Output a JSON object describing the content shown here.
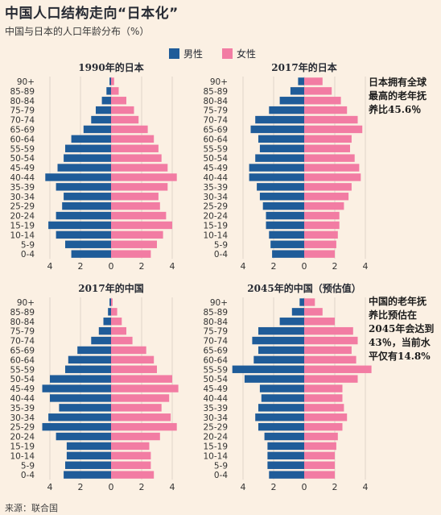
{
  "header": {
    "title": "中国人口结构走向“日本化”",
    "subtitle": "中国与日本的人口年龄分布（%）",
    "source": "来源：联合国"
  },
  "legend": [
    {
      "label": "男性",
      "color": "#1f5c99"
    },
    {
      "label": "女性",
      "color": "#f27ca3"
    }
  ],
  "annotations": {
    "japan": [
      "日本拥有全球",
      "最高的老年抚",
      "养比45.6％"
    ],
    "china": [
      "中国的老年抚",
      "养比预估在",
      "2045年会达到",
      "43％，当前水",
      "平仅有14.8%"
    ]
  },
  "chart_data": [
    {
      "type": "bar",
      "title": "1990年的日本",
      "categories": [
        "90+",
        "85-89",
        "80-84",
        "75-79",
        "70-74",
        "65-69",
        "60-64",
        "55-59",
        "50-54",
        "45-49",
        "40-44",
        "35-39",
        "30-34",
        "25-29",
        "20-24",
        "15-19",
        "10-14",
        "5-9",
        "0-4"
      ],
      "xticks": [
        4,
        2,
        0,
        2,
        4
      ],
      "xlim": [
        -4.5,
        4.5
      ],
      "series": [
        {
          "name": "男性",
          "values": [
            0.1,
            0.3,
            0.6,
            1.0,
            1.3,
            1.8,
            2.6,
            3.0,
            3.1,
            3.5,
            4.3,
            3.6,
            3.1,
            3.2,
            3.6,
            4.1,
            3.6,
            3.0,
            2.6
          ]
        },
        {
          "name": "女性",
          "values": [
            0.2,
            0.5,
            1.0,
            1.5,
            1.8,
            2.4,
            2.8,
            3.1,
            3.3,
            3.7,
            4.3,
            3.7,
            3.1,
            3.2,
            3.6,
            4.0,
            3.4,
            3.0,
            2.6
          ]
        }
      ]
    },
    {
      "type": "bar",
      "title": "2017年的日本",
      "categories": [
        "90+",
        "85-89",
        "80-84",
        "75-79",
        "70-74",
        "65-69",
        "60-64",
        "55-59",
        "50-54",
        "45-49",
        "40-44",
        "35-39",
        "30-34",
        "25-29",
        "20-24",
        "15-19",
        "10-14",
        "5-9",
        "0-4"
      ],
      "xticks": [
        4,
        2,
        0,
        2,
        4
      ],
      "xlim": [
        -4.5,
        4.5
      ],
      "series": [
        {
          "name": "男性",
          "values": [
            0.4,
            0.9,
            1.6,
            2.3,
            3.2,
            3.5,
            3.0,
            2.9,
            3.2,
            3.6,
            3.6,
            3.1,
            2.9,
            2.7,
            2.5,
            2.5,
            2.3,
            2.2,
            2.1
          ]
        },
        {
          "name": "女性",
          "values": [
            1.2,
            1.8,
            2.4,
            2.8,
            3.5,
            3.8,
            3.1,
            3.0,
            3.3,
            3.6,
            3.7,
            3.1,
            2.9,
            2.6,
            2.3,
            2.3,
            2.2,
            2.1,
            2.0
          ]
        }
      ]
    },
    {
      "type": "bar",
      "title": "2017年的中国",
      "categories": [
        "90+",
        "85-89",
        "80-84",
        "75-79",
        "70-74",
        "65-69",
        "60-64",
        "55-59",
        "50-54",
        "45-49",
        "40-44",
        "35-39",
        "30-34",
        "25-29",
        "20-24",
        "15-19",
        "10-14",
        "5-9",
        "0-4"
      ],
      "xticks": [
        4,
        2,
        0,
        2,
        4
      ],
      "xlim": [
        -4.5,
        4.5
      ],
      "series": [
        {
          "name": "男性",
          "values": [
            0.1,
            0.2,
            0.5,
            0.8,
            1.3,
            2.2,
            2.8,
            3.0,
            4.0,
            4.5,
            4.0,
            3.4,
            4.1,
            4.5,
            3.6,
            2.9,
            2.9,
            3.0,
            3.1
          ]
        },
        {
          "name": "女性",
          "values": [
            0.1,
            0.4,
            0.7,
            1.0,
            1.4,
            2.3,
            2.8,
            3.0,
            4.0,
            4.4,
            3.8,
            3.3,
            3.9,
            4.3,
            3.2,
            2.5,
            2.6,
            2.6,
            2.8
          ]
        }
      ]
    },
    {
      "type": "bar",
      "title": "2045年的中国（预估值）",
      "categories": [
        "90+",
        "85-89",
        "80-84",
        "75-79",
        "70-74",
        "65-69",
        "60-64",
        "55-59",
        "50-54",
        "45-49",
        "40-44",
        "35-39",
        "30-34",
        "25-29",
        "20-24",
        "15-19",
        "10-14",
        "5-9",
        "0-4"
      ],
      "xticks": [
        4,
        2,
        0,
        2,
        4
      ],
      "xlim": [
        -4.5,
        4.5
      ],
      "series": [
        {
          "name": "男性",
          "values": [
            0.3,
            0.8,
            1.6,
            3.0,
            3.4,
            3.0,
            3.3,
            4.7,
            3.9,
            2.9,
            2.8,
            3.0,
            3.2,
            3.0,
            2.6,
            2.4,
            2.4,
            2.4,
            2.3
          ]
        },
        {
          "name": "女性",
          "values": [
            0.7,
            1.2,
            2.0,
            3.2,
            3.5,
            3.1,
            3.4,
            4.4,
            3.5,
            2.5,
            2.5,
            2.6,
            2.8,
            2.5,
            2.2,
            2.1,
            2.0,
            2.0,
            2.0
          ]
        }
      ]
    }
  ]
}
